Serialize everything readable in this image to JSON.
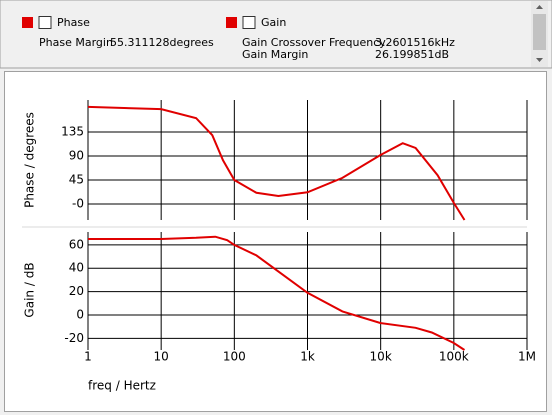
{
  "panel": {
    "phase_rows": [
      [
        "Phase Margin",
        "55.311128degrees"
      ]
    ],
    "gain_rows": [
      [
        "Gain Crossover Frequency",
        "3.2601516kHz"
      ],
      [
        "Gain Margin",
        "26.199851dB"
      ]
    ]
  },
  "chart_data": [
    {
      "type": "line",
      "ylabel": "Phase / degrees",
      "xscale": "log",
      "grid": true,
      "x": [
        1,
        10,
        30,
        50,
        70,
        100,
        200,
        400,
        1000,
        3000,
        10000,
        20000,
        30000,
        60000,
        100000,
        140000
      ],
      "series": [
        {
          "name": "Phase",
          "color": "#e00000",
          "values": [
            182,
            178,
            161,
            129,
            82,
            45,
            21,
            15,
            22,
            49,
            92,
            114,
            105,
            54,
            2,
            -30
          ]
        }
      ],
      "xlim": [
        1,
        1000000
      ],
      "xticks": [
        1,
        10,
        100,
        1000,
        10000,
        100000,
        1000000
      ],
      "ylim": [
        -30,
        195
      ],
      "yticks": [
        {
          "value": 0,
          "label": "-0"
        },
        45,
        90,
        135
      ]
    },
    {
      "type": "line",
      "ylabel": "Gain / dB",
      "xlabel": "freq / Hertz",
      "xscale": "log",
      "grid": true,
      "x": [
        1,
        10,
        30,
        55,
        80,
        100,
        200,
        1000,
        3000,
        10000,
        30000,
        50000,
        100000,
        140000
      ],
      "series": [
        {
          "name": "Gain",
          "color": "#e00000",
          "values": [
            65,
            65,
            66,
            67,
            64,
            60,
            51,
            19,
            3,
            -7,
            -11,
            -15,
            -24,
            -30
          ]
        }
      ],
      "xlim": [
        1,
        1000000
      ],
      "xticks": [
        1,
        10,
        100,
        {
          "value": 1000,
          "label": "1k"
        },
        {
          "value": 10000,
          "label": "10k"
        },
        {
          "value": 100000,
          "label": "100k"
        },
        {
          "value": 1000000,
          "label": "1M"
        }
      ],
      "ylim": [
        -30,
        71
      ],
      "yticks": [
        -20,
        0,
        20,
        40,
        60
      ]
    }
  ]
}
